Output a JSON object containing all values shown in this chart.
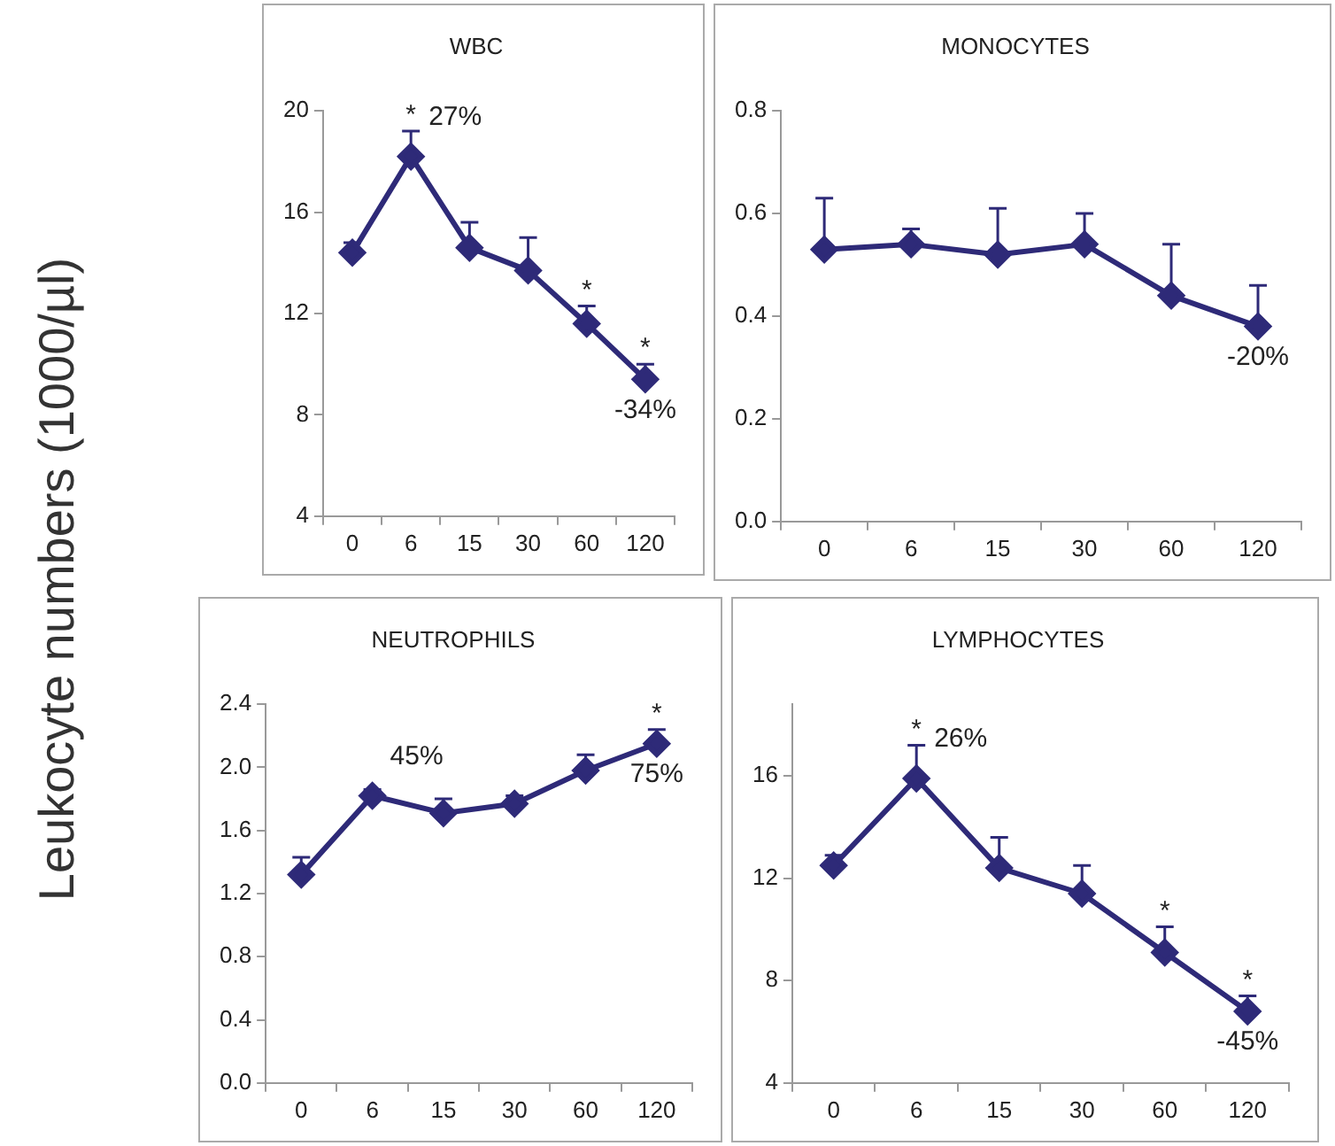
{
  "chart_data": [
    {
      "type": "line",
      "title": "WBC",
      "ylabel": "Leukocyte numbers (1000/µl)",
      "categories": [
        "0",
        "6",
        "15",
        "30",
        "60",
        "120"
      ],
      "ylim": [
        4,
        20
      ],
      "yticks": [
        4,
        8,
        12,
        16,
        20
      ],
      "grid": false,
      "legend": false,
      "marker": "diamond",
      "line_style": "solid",
      "series": [
        {
          "color": "#2e2a78",
          "values": [
            14.4,
            18.2,
            14.6,
            13.7,
            11.6,
            9.4
          ],
          "errors": [
            [
              14.4,
              14.8
            ],
            [
              18.2,
              19.2
            ],
            [
              14.6,
              15.6
            ],
            [
              13.7,
              15.0
            ],
            [
              11.6,
              12.3
            ],
            [
              9.4,
              10.0
            ]
          ]
        }
      ],
      "annotations": [
        {
          "text": "*",
          "x": "6",
          "y": 19.2
        },
        {
          "text": "27%",
          "x": "6",
          "y": 18.2
        },
        {
          "text": "*",
          "x": "60",
          "y": 12.3
        },
        {
          "text": "*",
          "x": "120",
          "y": 10.0
        },
        {
          "text": "-34%",
          "x": "120",
          "y": 9.4
        }
      ]
    },
    {
      "type": "line",
      "title": "MONOCYTES",
      "categories": [
        "0",
        "6",
        "15",
        "30",
        "60",
        "120"
      ],
      "ylim": [
        0,
        0.8
      ],
      "yticks": [
        {
          "value": 0,
          "label": "0.0"
        },
        {
          "value": 0.2,
          "label": "0.2"
        },
        {
          "value": 0.4,
          "label": "0.4"
        },
        {
          "value": 0.6,
          "label": "0.6"
        },
        {
          "value": 0.8,
          "label": "0.8"
        }
      ],
      "grid": false,
      "legend": false,
      "marker": "diamond",
      "line_style": "solid",
      "series": [
        {
          "color": "#2e2a78",
          "values": [
            0.53,
            0.54,
            0.52,
            0.54,
            0.44,
            0.38
          ],
          "errors": [
            [
              0.53,
              0.63
            ],
            [
              0.54,
              0.57
            ],
            [
              0.52,
              0.61
            ],
            [
              0.54,
              0.6
            ],
            [
              0.44,
              0.54
            ],
            [
              0.38,
              0.46
            ]
          ]
        }
      ],
      "annotations": [
        {
          "text": "-20%",
          "x": "120",
          "y": 0.38
        }
      ]
    },
    {
      "type": "line",
      "title": "NEUTROPHILS",
      "categories": [
        "0",
        "6",
        "15",
        "30",
        "60",
        "120"
      ],
      "ylim": [
        0,
        2.4
      ],
      "yticks": [
        {
          "value": 0,
          "label": "0.0"
        },
        0.4,
        0.8,
        1.2,
        1.6,
        {
          "value": 2,
          "label": "2.0"
        },
        2.4
      ],
      "grid": false,
      "legend": false,
      "marker": "diamond",
      "line_style": "solid",
      "series": [
        {
          "color": "#2e2a78",
          "values": [
            1.32,
            1.82,
            1.71,
            1.77,
            1.98,
            2.15
          ],
          "errors": [
            [
              1.32,
              1.43
            ],
            [
              1.82,
              1.86
            ],
            [
              1.71,
              1.8
            ],
            [
              1.77,
              1.82
            ],
            [
              1.98,
              2.08
            ],
            [
              2.15,
              2.24
            ]
          ]
        }
      ],
      "annotations": [
        {
          "text": "45%",
          "x": "6",
          "y": 1.82
        },
        {
          "text": "*",
          "x": "120",
          "y": 2.24
        },
        {
          "text": "75%",
          "x": "120",
          "y": 2.15
        }
      ]
    },
    {
      "type": "line",
      "title": "LYMPHOCYTES",
      "categories": [
        "0",
        "6",
        "15",
        "30",
        "60",
        "120"
      ],
      "ylim": [
        4,
        18.8
      ],
      "yticks": [
        4,
        8,
        12,
        16
      ],
      "grid": false,
      "legend": false,
      "marker": "diamond",
      "line_style": "solid",
      "series": [
        {
          "color": "#2e2a78",
          "values": [
            12.5,
            15.9,
            12.4,
            11.4,
            9.1,
            6.8
          ],
          "errors": [
            [
              12.5,
              12.9
            ],
            [
              15.9,
              17.2
            ],
            [
              12.4,
              13.6
            ],
            [
              11.4,
              12.5
            ],
            [
              9.1,
              10.1
            ],
            [
              6.8,
              7.4
            ]
          ]
        }
      ],
      "annotations": [
        {
          "text": "*",
          "x": "6",
          "y": 17.2
        },
        {
          "text": "26%",
          "x": "6",
          "y": 15.9
        },
        {
          "text": "*",
          "x": "60",
          "y": 10.1
        },
        {
          "text": "*",
          "x": "120",
          "y": 7.4
        },
        {
          "text": "-45%",
          "x": "120",
          "y": 6.8
        }
      ]
    }
  ]
}
